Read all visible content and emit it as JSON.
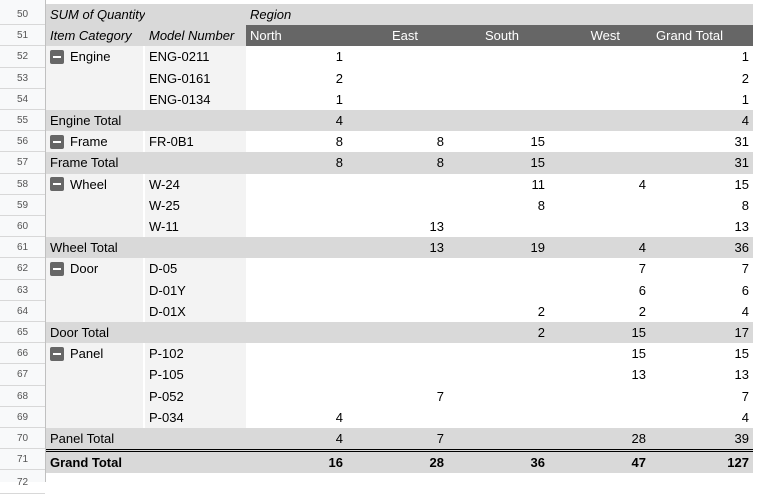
{
  "start_row": 50,
  "header": {
    "value_label": "SUM of Quantity",
    "column_field": "Region",
    "row_fields": [
      "Item Category",
      "Model Number"
    ],
    "columns": [
      "North",
      "East",
      "South",
      "West",
      "Grand Total"
    ]
  },
  "groups": [
    {
      "category": "Engine",
      "rows": [
        [
          "ENG-0211",
          "1",
          "",
          "",
          "",
          "1"
        ],
        [
          "ENG-0161",
          "2",
          "",
          "",
          "",
          "2"
        ],
        [
          "ENG-0134",
          "1",
          "",
          "",
          "",
          "1"
        ]
      ],
      "total": [
        "Engine Total",
        "4",
        "",
        "",
        "",
        "4"
      ]
    },
    {
      "category": "Frame",
      "rows": [
        [
          "FR-0B1",
          "8",
          "8",
          "15",
          "",
          "31"
        ]
      ],
      "total": [
        "Frame Total",
        "8",
        "8",
        "15",
        "",
        "31"
      ]
    },
    {
      "category": "Wheel",
      "rows": [
        [
          "W-24",
          "",
          "",
          "11",
          "4",
          "15"
        ],
        [
          "W-25",
          "",
          "",
          "8",
          "",
          "8"
        ],
        [
          "W-11",
          "",
          "13",
          "",
          "",
          "13"
        ]
      ],
      "total": [
        "Wheel Total",
        "",
        "13",
        "19",
        "4",
        "36"
      ]
    },
    {
      "category": "Door",
      "rows": [
        [
          "D-05",
          "",
          "",
          "",
          "7",
          "7"
        ],
        [
          "D-01Y",
          "",
          "",
          "",
          "6",
          "6"
        ],
        [
          "D-01X",
          "",
          "",
          "2",
          "2",
          "4"
        ]
      ],
      "total": [
        "Door Total",
        "",
        "",
        "2",
        "15",
        "17"
      ]
    },
    {
      "category": "Panel",
      "rows": [
        [
          "P-102",
          "",
          "",
          "",
          "15",
          "15"
        ],
        [
          "P-105",
          "",
          "",
          "",
          "13",
          "13"
        ],
        [
          "P-052",
          "",
          "7",
          "",
          "",
          "7"
        ],
        [
          "P-034",
          "4",
          "",
          "",
          "",
          "4"
        ]
      ],
      "total": [
        "Panel Total",
        "4",
        "7",
        "",
        "28",
        "39"
      ]
    }
  ],
  "grand_total": [
    "Grand Total",
    "16",
    "28",
    "36",
    "47",
    "127"
  ],
  "extra_row_number": 72
}
